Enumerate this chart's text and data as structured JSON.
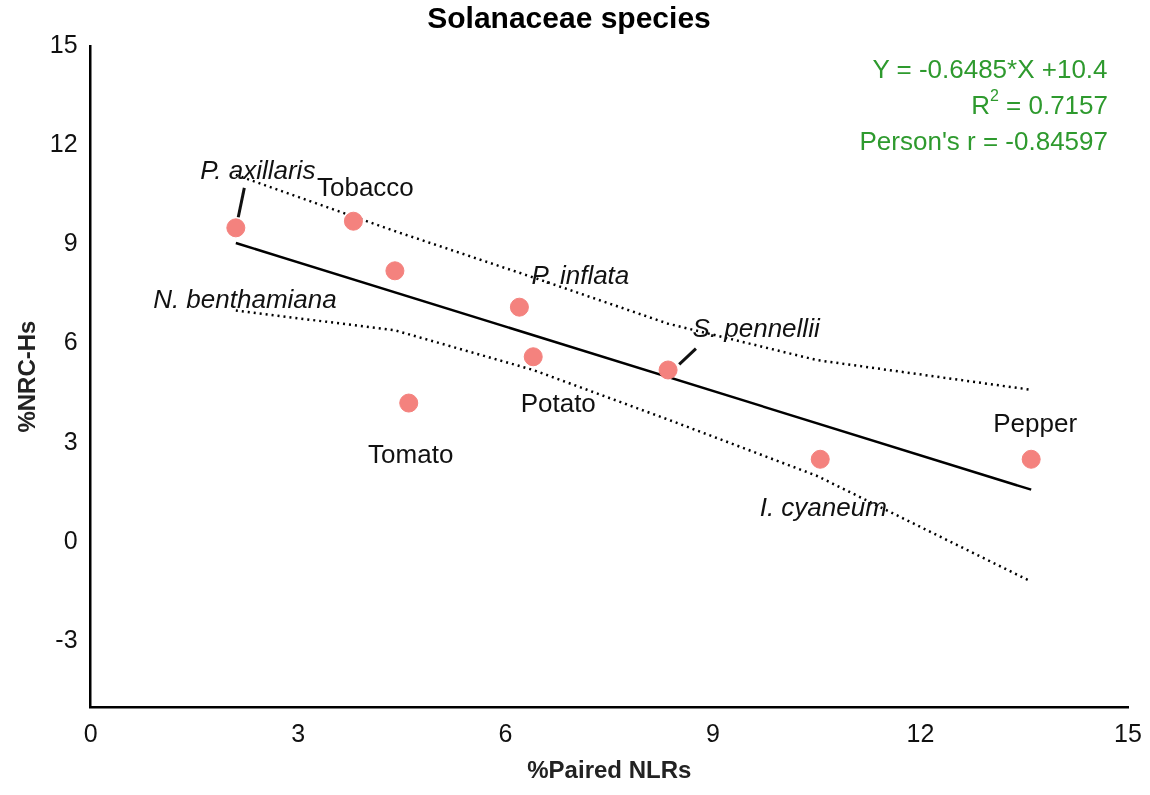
{
  "chart_data": {
    "type": "scatter",
    "title": "Solanaceae species",
    "xlabel": "%Paired NLRs",
    "ylabel": "%NRC-Hs",
    "xlim": [
      0,
      15
    ],
    "xticks": [
      0,
      3,
      6,
      9,
      12,
      15
    ],
    "ylim": [
      -5,
      15
    ],
    "yticks": [
      -3,
      0,
      3,
      6,
      9,
      12,
      15
    ],
    "marker": "circle",
    "grid": false,
    "legend": false,
    "series": [
      {
        "type": "scatter",
        "color": "#f4827e",
        "x": [
          2.1,
          3.8,
          4.4,
          4.6,
          6.2,
          6.4,
          8.35,
          10.55,
          13.6
        ],
        "values": [
          9.5,
          9.7,
          8.2,
          4.2,
          7.1,
          5.6,
          5.2,
          2.5,
          2.5
        ]
      },
      {
        "type": "line",
        "color": "#000000",
        "line_style": "solid",
        "marker": "none",
        "x": [
          2.1,
          13.6
        ],
        "values": [
          9.04,
          1.58
        ]
      },
      {
        "type": "line",
        "color": "#000000",
        "line_style": "dotted",
        "marker": "none",
        "x": [
          2.1,
          4.4,
          6.4,
          8.35,
          10.5,
          13.6
        ],
        "values": [
          11.1,
          9.4,
          8.0,
          6.6,
          5.5,
          4.6
        ]
      },
      {
        "type": "line",
        "color": "#000000",
        "line_style": "dotted",
        "marker": "none",
        "x": [
          2.1,
          4.4,
          6.4,
          8.35,
          10.5,
          13.6
        ],
        "values": [
          7.0,
          6.4,
          5.2,
          3.7,
          2.0,
          -1.2
        ]
      }
    ],
    "annotations": [
      {
        "text": "P. axillaris",
        "x": 2.1,
        "y": 9.5
      },
      {
        "text": "Tobacco",
        "x": 3.8,
        "y": 9.7
      },
      {
        "text": "N. benthamiana",
        "x": 4.4,
        "y": 8.2
      },
      {
        "text": "Tomato",
        "x": 4.6,
        "y": 4.2
      },
      {
        "text": "P. inflata",
        "x": 6.2,
        "y": 7.1
      },
      {
        "text": "Potato",
        "x": 6.4,
        "y": 5.6
      },
      {
        "text": "S. pennellii",
        "x": 8.35,
        "y": 5.2
      },
      {
        "text": "I. cyaneum",
        "x": 10.55,
        "y": 2.5
      },
      {
        "text": "Pepper",
        "x": 13.6,
        "y": 2.5
      },
      "Y = -0.6485*X +10.4",
      "R$^{2}$ = 0.7157",
      "Person's r = -0.84597"
    ]
  }
}
